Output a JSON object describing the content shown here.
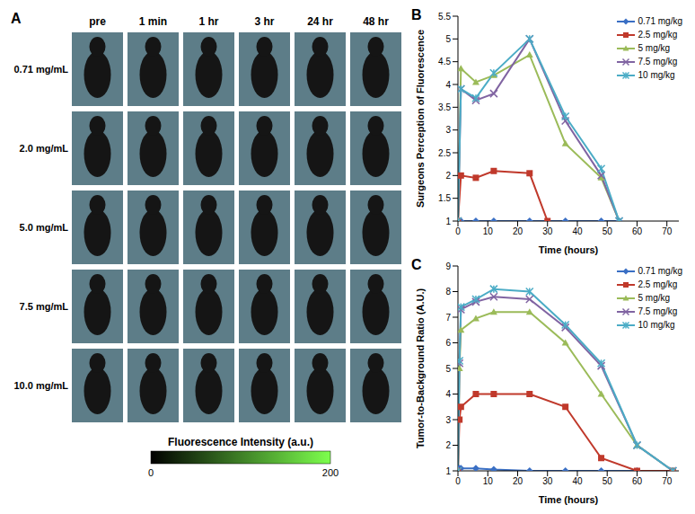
{
  "chart_data": [
    {
      "type": "image_grid",
      "title": "A",
      "columns": [
        "pre",
        "1 min",
        "1 hr",
        "3 hr",
        "24 hr",
        "48 hr"
      ],
      "rows": [
        "0.71 mg/mL",
        "2.0 mg/mL",
        "5.0 mg/mL",
        "7.5 mg/mL",
        "10.0 mg/mL"
      ],
      "colorbar": {
        "label": "Fluorescence Intensity  (a.u.)",
        "range": [
          0,
          200
        ],
        "ticks": [
          0,
          200
        ],
        "colors": [
          "#000000",
          "#7dff4d"
        ]
      }
    },
    {
      "type": "line",
      "title": "B",
      "x_label": "Time (hours)",
      "y_label": "Surgeons Perception of Fluorescence",
      "xlim": [
        0,
        74
      ],
      "xticks": [
        0,
        10,
        20,
        30,
        40,
        50,
        60,
        70
      ],
      "ylim": [
        1,
        5.5
      ],
      "yticks": [
        1,
        1.5,
        2,
        2.5,
        3,
        3.5,
        4,
        4.5,
        5,
        5.5
      ],
      "legend": "upper right",
      "grid": false,
      "series": [
        {
          "name": "0.71 mg/kg",
          "color": "#3a6fc4",
          "marker": "diamond",
          "x": [
            0,
            1,
            6,
            12,
            24,
            36,
            48,
            54
          ],
          "values": [
            1,
            1,
            1,
            1,
            1,
            1,
            1,
            1
          ]
        },
        {
          "name": "2.5 mg/kg",
          "color": "#c0392b",
          "marker": "square",
          "x": [
            0,
            1,
            6,
            12,
            24,
            30
          ],
          "values": [
            1,
            2,
            1.95,
            2.1,
            2.05,
            1
          ]
        },
        {
          "name": "5 mg/kg",
          "color": "#9bbb59",
          "marker": "triangle",
          "x": [
            0,
            1,
            6,
            12,
            24,
            36,
            48,
            54
          ],
          "values": [
            1,
            4.35,
            4.05,
            4.2,
            4.65,
            2.7,
            1.95,
            1
          ]
        },
        {
          "name": "7.5 mg/kg",
          "color": "#8064a2",
          "marker": "cross",
          "x": [
            0,
            1,
            6,
            12,
            24,
            36,
            48,
            54
          ],
          "values": [
            1,
            3.9,
            3.65,
            3.8,
            5,
            3.2,
            2,
            1
          ]
        },
        {
          "name": "10 mg/kg",
          "color": "#4bacc6",
          "marker": "star",
          "x": [
            0,
            1,
            6,
            12,
            24,
            36,
            48,
            54
          ],
          "values": [
            1,
            3.9,
            3.7,
            4.25,
            5,
            3.3,
            2.15,
            1
          ]
        }
      ]
    },
    {
      "type": "line",
      "title": "C",
      "x_label": "Time (hours)",
      "y_label": "Tumor-to-Background Ratio (A.U.)",
      "xlim": [
        0,
        74
      ],
      "xticks": [
        0,
        10,
        20,
        30,
        40,
        50,
        60,
        70
      ],
      "ylim": [
        1,
        9
      ],
      "yticks": [
        1,
        2,
        3,
        4,
        5,
        6,
        7,
        8,
        9
      ],
      "legend": "upper right",
      "grid": false,
      "series": [
        {
          "name": "0.71 mg/kg",
          "color": "#3a6fc4",
          "marker": "diamond",
          "x": [
            0,
            0.5,
            1,
            6,
            12,
            24,
            36,
            48,
            60,
            72
          ],
          "values": [
            1,
            1.1,
            1.1,
            1.1,
            1.05,
            1,
            1,
            1,
            1,
            1
          ]
        },
        {
          "name": "2.5 mg/kg",
          "color": "#c0392b",
          "marker": "square",
          "x": [
            0,
            0.5,
            1,
            6,
            12,
            24,
            36,
            48,
            60,
            72
          ],
          "values": [
            1,
            3,
            3.5,
            4,
            4,
            4,
            3.5,
            1.5,
            1,
            1
          ]
        },
        {
          "name": "5 mg/kg",
          "color": "#9bbb59",
          "marker": "triangle",
          "x": [
            0,
            0.5,
            1,
            6,
            12,
            24,
            36,
            48,
            60,
            72
          ],
          "values": [
            1,
            5,
            6.5,
            6.95,
            7.2,
            7.2,
            6,
            4,
            2,
            1
          ]
        },
        {
          "name": "7.5 mg/kg",
          "color": "#8064a2",
          "marker": "cross",
          "x": [
            0,
            0.5,
            1,
            6,
            12,
            24,
            36,
            48,
            60,
            72
          ],
          "values": [
            1,
            5.2,
            7.3,
            7.6,
            7.8,
            7.7,
            6.6,
            5.1,
            2,
            1
          ]
        },
        {
          "name": "10 mg/kg",
          "color": "#4bacc6",
          "marker": "star",
          "x": [
            0,
            0.5,
            1,
            6,
            12,
            24,
            36,
            48,
            60,
            72
          ],
          "values": [
            1,
            5.3,
            7.4,
            7.7,
            8.1,
            8,
            6.7,
            5.2,
            2,
            1
          ]
        }
      ]
    }
  ]
}
